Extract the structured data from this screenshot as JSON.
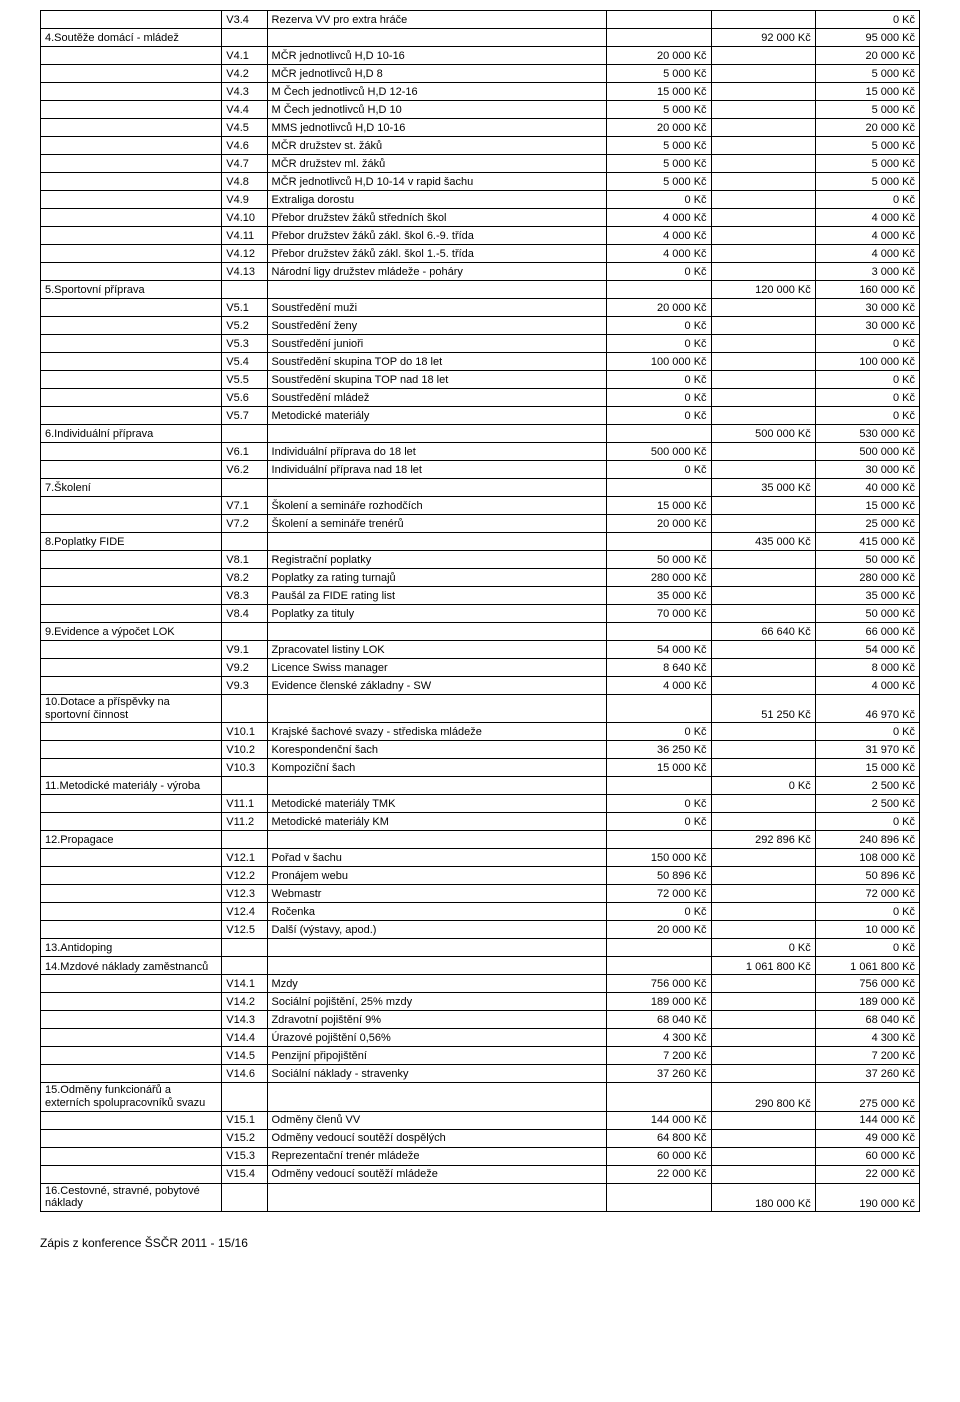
{
  "footer": "Zápis z konference ŠSČR 2011 - 15/16",
  "rows": [
    {
      "s": "",
      "c": "V3.4",
      "d": "Rezerva VV pro extra hráče",
      "a": "",
      "b": "",
      "e": "0 Kč"
    },
    {
      "s": "4.Soutěže domácí - mládež",
      "c": "",
      "d": "",
      "a": "",
      "b": "92 000 Kč",
      "e": "95 000 Kč"
    },
    {
      "s": "",
      "c": "V4.1",
      "d": "MČR jednotlivců H,D 10-16",
      "a": "20 000 Kč",
      "b": "",
      "e": "20 000 Kč"
    },
    {
      "s": "",
      "c": "V4.2",
      "d": "MČR jednotlivců H,D 8",
      "a": "5 000 Kč",
      "b": "",
      "e": "5 000 Kč"
    },
    {
      "s": "",
      "c": "V4.3",
      "d": "M Čech jednotlivců H,D 12-16",
      "a": "15 000 Kč",
      "b": "",
      "e": "15 000 Kč"
    },
    {
      "s": "",
      "c": "V4.4",
      "d": "M Čech jednotlivců H,D 10",
      "a": "5 000 Kč",
      "b": "",
      "e": "5 000 Kč"
    },
    {
      "s": "",
      "c": "V4.5",
      "d": "MMS jednotlivců H,D 10-16",
      "a": "20 000 Kč",
      "b": "",
      "e": "20 000 Kč"
    },
    {
      "s": "",
      "c": "V4.6",
      "d": "MČR družstev st. žáků",
      "a": "5 000 Kč",
      "b": "",
      "e": "5 000 Kč"
    },
    {
      "s": "",
      "c": "V4.7",
      "d": "MČR družstev ml. žáků",
      "a": "5 000 Kč",
      "b": "",
      "e": "5 000 Kč"
    },
    {
      "s": "",
      "c": "V4.8",
      "d": "MČR jednotlivců H,D 10-14 v rapid šachu",
      "a": "5 000 Kč",
      "b": "",
      "e": "5 000 Kč"
    },
    {
      "s": "",
      "c": "V4.9",
      "d": "Extraliga dorostu",
      "a": "0 Kč",
      "b": "",
      "e": "0 Kč"
    },
    {
      "s": "",
      "c": "V4.10",
      "d": "Přebor družstev žáků středních škol",
      "a": "4 000 Kč",
      "b": "",
      "e": "4 000 Kč"
    },
    {
      "s": "",
      "c": "V4.11",
      "d": "Přebor družstev žáků zákl. škol 6.-9. třída",
      "a": "4 000 Kč",
      "b": "",
      "e": "4 000 Kč"
    },
    {
      "s": "",
      "c": "V4.12",
      "d": "Přebor družstev žáků zákl. škol 1.-5. třída",
      "a": "4 000 Kč",
      "b": "",
      "e": "4 000 Kč"
    },
    {
      "s": "",
      "c": "V4.13",
      "d": "Národní ligy družstev mládeže - poháry",
      "a": "0 Kč",
      "b": "",
      "e": "3 000 Kč"
    },
    {
      "s": "5.Sportovní příprava",
      "c": "",
      "d": "",
      "a": "",
      "b": "120 000 Kč",
      "e": "160 000 Kč"
    },
    {
      "s": "",
      "c": "V5.1",
      "d": "Soustředění muži",
      "a": "20 000 Kč",
      "b": "",
      "e": "30 000 Kč"
    },
    {
      "s": "",
      "c": "V5.2",
      "d": "Soustředění ženy",
      "a": "0 Kč",
      "b": "",
      "e": "30 000 Kč"
    },
    {
      "s": "",
      "c": "V5.3",
      "d": "Soustředění junioři",
      "a": "0 Kč",
      "b": "",
      "e": "0 Kč"
    },
    {
      "s": "",
      "c": "V5.4",
      "d": "Soustředění skupina TOP do 18 let",
      "a": "100 000 Kč",
      "b": "",
      "e": "100 000 Kč"
    },
    {
      "s": "",
      "c": "V5.5",
      "d": "Soustředění skupina TOP nad 18 let",
      "a": "0 Kč",
      "b": "",
      "e": "0 Kč"
    },
    {
      "s": "",
      "c": "V5.6",
      "d": "Soustředění mládež",
      "a": "0 Kč",
      "b": "",
      "e": "0 Kč"
    },
    {
      "s": "",
      "c": "V5.7",
      "d": "Metodické materiály",
      "a": "0 Kč",
      "b": "",
      "e": "0 Kč"
    },
    {
      "s": "6.Individuální příprava",
      "c": "",
      "d": "",
      "a": "",
      "b": "500 000 Kč",
      "e": "530 000 Kč"
    },
    {
      "s": "",
      "c": "V6.1",
      "d": "Individuální příprava do 18 let",
      "a": "500 000 Kč",
      "b": "",
      "e": "500 000 Kč"
    },
    {
      "s": "",
      "c": "V6.2",
      "d": "Individuální příprava nad 18 let",
      "a": "0 Kč",
      "b": "",
      "e": "30 000 Kč"
    },
    {
      "s": "7.Školení",
      "c": "",
      "d": "",
      "a": "",
      "b": "35 000 Kč",
      "e": "40 000 Kč"
    },
    {
      "s": "",
      "c": "V7.1",
      "d": "Školení a semináře rozhodčích",
      "a": "15 000 Kč",
      "b": "",
      "e": "15 000 Kč"
    },
    {
      "s": "",
      "c": "V7.2",
      "d": "Školení a semináře trenérů",
      "a": "20 000 Kč",
      "b": "",
      "e": "25 000 Kč"
    },
    {
      "s": "8.Poplatky FIDE",
      "c": "",
      "d": "",
      "a": "",
      "b": "435 000 Kč",
      "e": "415 000 Kč"
    },
    {
      "s": "",
      "c": "V8.1",
      "d": "Registrační poplatky",
      "a": "50 000 Kč",
      "b": "",
      "e": "50 000 Kč"
    },
    {
      "s": "",
      "c": "V8.2",
      "d": "Poplatky za rating turnajů",
      "a": "280 000 Kč",
      "b": "",
      "e": "280 000 Kč"
    },
    {
      "s": "",
      "c": "V8.3",
      "d": "Paušál za FIDE rating list",
      "a": "35 000 Kč",
      "b": "",
      "e": "35 000 Kč"
    },
    {
      "s": "",
      "c": "V8.4",
      "d": "Poplatky za tituly",
      "a": "70 000 Kč",
      "b": "",
      "e": "50 000 Kč"
    },
    {
      "s": "9.Evidence a výpočet LOK",
      "c": "",
      "d": "",
      "a": "",
      "b": "66 640 Kč",
      "e": "66 000 Kč"
    },
    {
      "s": "",
      "c": "V9.1",
      "d": "Zpracovatel listiny LOK",
      "a": "54 000 Kč",
      "b": "",
      "e": "54 000 Kč"
    },
    {
      "s": "",
      "c": "V9.2",
      "d": "Licence Swiss manager",
      "a": "8 640 Kč",
      "b": "",
      "e": "8 000 Kč"
    },
    {
      "s": "",
      "c": "V9.3",
      "d": "Evidence členské základny - SW",
      "a": "4 000 Kč",
      "b": "",
      "e": "4 000 Kč"
    },
    {
      "s": "10.Dotace a příspěvky na sportovní činnost",
      "c": "",
      "d": "",
      "a": "",
      "b": "51 250 Kč",
      "e": "46 970 Kč",
      "wrap": true
    },
    {
      "s": "",
      "c": "V10.1",
      "d": "Krajské šachové svazy - střediska mládeže",
      "a": "0 Kč",
      "b": "",
      "e": "0 Kč"
    },
    {
      "s": "",
      "c": "V10.2",
      "d": "Korespondenční šach",
      "a": "36 250 Kč",
      "b": "",
      "e": "31 970 Kč"
    },
    {
      "s": "",
      "c": "V10.3",
      "d": "Kompoziční šach",
      "a": "15 000 Kč",
      "b": "",
      "e": "15 000 Kč"
    },
    {
      "s": "11.Metodické materiály - výroba",
      "c": "",
      "d": "",
      "a": "",
      "b": "0 Kč",
      "e": "2 500 Kč"
    },
    {
      "s": "",
      "c": "V11.1",
      "d": "Metodické materiály TMK",
      "a": "0 Kč",
      "b": "",
      "e": "2 500 Kč"
    },
    {
      "s": "",
      "c": "V11.2",
      "d": "Metodické materiály KM",
      "a": "0 Kč",
      "b": "",
      "e": "0 Kč"
    },
    {
      "s": "12.Propagace",
      "c": "",
      "d": "",
      "a": "",
      "b": "292 896 Kč",
      "e": "240 896 Kč"
    },
    {
      "s": "",
      "c": "V12.1",
      "d": "Pořad v šachu",
      "a": "150 000 Kč",
      "b": "",
      "e": "108 000 Kč"
    },
    {
      "s": "",
      "c": "V12.2",
      "d": "Pronájem webu",
      "a": "50 896 Kč",
      "b": "",
      "e": "50 896 Kč"
    },
    {
      "s": "",
      "c": "V12.3",
      "d": "Webmastr",
      "a": "72 000 Kč",
      "b": "",
      "e": "72 000 Kč"
    },
    {
      "s": "",
      "c": "V12.4",
      "d": "Ročenka",
      "a": "0 Kč",
      "b": "",
      "e": "0 Kč"
    },
    {
      "s": "",
      "c": "V12.5",
      "d": "Další (výstavy, apod.)",
      "a": "20 000 Kč",
      "b": "",
      "e": "10 000 Kč"
    },
    {
      "s": "13.Antidoping",
      "c": "",
      "d": "",
      "a": "",
      "b": "0 Kč",
      "e": "0 Kč"
    },
    {
      "s": "14.Mzdové náklady zaměstnanců",
      "c": "",
      "d": "",
      "a": "",
      "b": "1 061 800 Kč",
      "e": "1 061 800 Kč",
      "wrap": true
    },
    {
      "s": "",
      "c": "V14.1",
      "d": "Mzdy",
      "a": "756 000 Kč",
      "b": "",
      "e": "756 000 Kč"
    },
    {
      "s": "",
      "c": "V14.2",
      "d": "Sociální pojištění, 25% mzdy",
      "a": "189 000 Kč",
      "b": "",
      "e": "189 000 Kč"
    },
    {
      "s": "",
      "c": "V14.3",
      "d": "Zdravotní pojištění 9%",
      "a": "68 040 Kč",
      "b": "",
      "e": "68 040 Kč"
    },
    {
      "s": "",
      "c": "V14.4",
      "d": "Úrazové pojištění 0,56%",
      "a": "4 300 Kč",
      "b": "",
      "e": "4 300 Kč"
    },
    {
      "s": "",
      "c": "V14.5",
      "d": "Penzijní připojištění",
      "a": "7 200 Kč",
      "b": "",
      "e": "7 200 Kč"
    },
    {
      "s": "",
      "c": "V14.6",
      "d": "Sociální náklady - stravenky",
      "a": "37 260 Kč",
      "b": "",
      "e": "37 260 Kč"
    },
    {
      "s": "15.Odměny funkcionářů a externích spolupracovníků svazu",
      "c": "",
      "d": "",
      "a": "",
      "b": "290 800 Kč",
      "e": "275 000 Kč",
      "wrap": true
    },
    {
      "s": "",
      "c": "V15.1",
      "d": "Odměny členů VV",
      "a": "144 000 Kč",
      "b": "",
      "e": "144 000 Kč"
    },
    {
      "s": "",
      "c": "V15.2",
      "d": "Odměny vedoucí soutěží dospělých",
      "a": "64 800 Kč",
      "b": "",
      "e": "49 000 Kč"
    },
    {
      "s": "",
      "c": "V15.3",
      "d": "Reprezentační trenér mládeže",
      "a": "60 000 Kč",
      "b": "",
      "e": "60 000 Kč"
    },
    {
      "s": "",
      "c": "V15.4",
      "d": "Odměny vedoucí soutěží mládeže",
      "a": "22 000 Kč",
      "b": "",
      "e": "22 000 Kč"
    },
    {
      "s": "16.Cestovné, stravné, pobytové náklady",
      "c": "",
      "d": "",
      "a": "",
      "b": "180 000 Kč",
      "e": "190 000 Kč",
      "wrap": true
    }
  ]
}
